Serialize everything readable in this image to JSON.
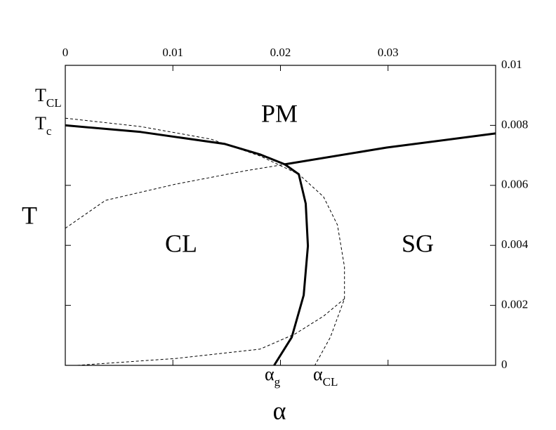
{
  "chart_data": {
    "type": "line",
    "x_label": "α",
    "y_label": "T",
    "xlim": [
      0,
      0.04
    ],
    "ylim": [
      0,
      0.01
    ],
    "xticks": [
      0,
      0.01,
      0.02,
      0.03
    ],
    "yticks": [
      0,
      0.002,
      0.004,
      0.006,
      0.008,
      0.01
    ],
    "series": [
      {
        "color": "#000000",
        "dashed": false,
        "x": [
          0,
          0.007,
          0.01484,
          0.0181,
          0.0204
        ],
        "values": [
          0.008,
          0.00778,
          0.00738,
          0.00703,
          0.0067
        ]
      },
      {
        "color": "#000000",
        "dashed": false,
        "x": [
          0.0204,
          0.02987,
          0.04
        ],
        "values": [
          0.0067,
          0.00726,
          0.00773
        ]
      },
      {
        "color": "#000000",
        "dashed": false,
        "x": [
          0.0204,
          0.0217,
          0.02235,
          0.02255,
          0.02216,
          0.02105,
          0.01941
        ],
        "values": [
          0.0067,
          0.00637,
          0.00539,
          0.00398,
          0.00234,
          0.00094,
          0
        ]
      },
      {
        "color": "#000000",
        "dashed": true,
        "x": [
          0,
          0.007,
          0.01353,
          0.0181,
          0.0217,
          0.024,
          0.0253,
          0.02595,
          0.02595,
          0.02464,
          0.0232
        ],
        "values": [
          0.00824,
          0.00796,
          0.00754,
          0.00698,
          0.00637,
          0.00562,
          0.00468,
          0.00328,
          0.00222,
          0.00094,
          0
        ]
      },
      {
        "color": "#000000",
        "dashed": true,
        "x": [
          0,
          0.00373,
          0.01026,
          0.0168,
          0.0204
        ],
        "values": [
          0.00457,
          0.0055,
          0.00604,
          0.00649,
          0.0067
        ]
      },
      {
        "color": "#000000",
        "dashed": true,
        "x": [
          0.0011,
          0.01026,
          0.0181,
          0.02137,
          0.024,
          0.02595
        ],
        "values": [
          0,
          0.00023,
          0.00054,
          0.00105,
          0.00164,
          0.00222
        ]
      }
    ],
    "regions": [
      "PM",
      "CL",
      "SG"
    ],
    "annotations": {
      "t_cl": {
        "base": "T",
        "sub": "CL"
      },
      "t_c": {
        "base": "T",
        "sub": "c"
      },
      "alpha_g": {
        "base": "α",
        "sub": "g"
      },
      "alpha_cl": {
        "base": "α",
        "sub": "CL"
      }
    }
  }
}
